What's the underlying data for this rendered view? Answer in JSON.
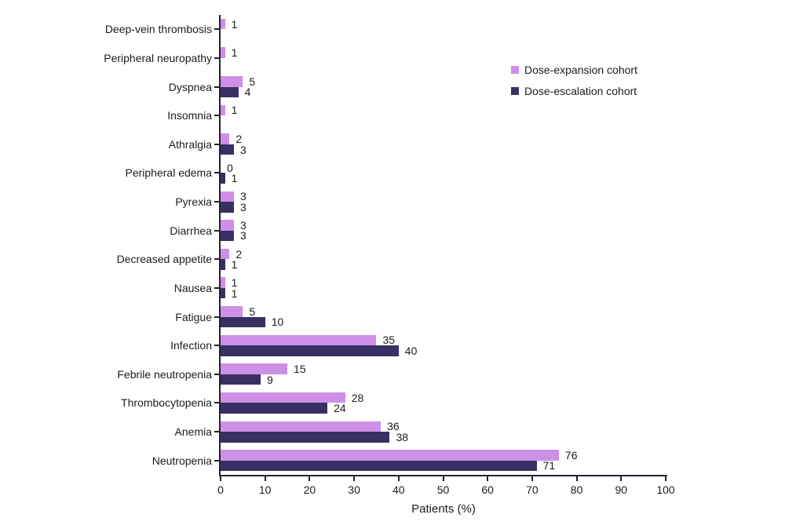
{
  "chart_data": {
    "type": "bar",
    "orientation": "horizontal",
    "title": "",
    "xlabel": "Patients (%)",
    "xlim": [
      0,
      100
    ],
    "xticks": [
      0,
      10,
      20,
      30,
      40,
      50,
      60,
      70,
      80,
      90,
      100
    ],
    "grid": false,
    "legend_position": "upper-right",
    "value_labels": true,
    "category_order": "top-to-bottom",
    "categories": [
      "Deep-vein thrombosis",
      "Peripheral neuropathy",
      "Dyspnea",
      "Insomnia",
      "Athralgia",
      "Peripheral edema",
      "Pyrexia",
      "Diarrhea",
      "Decreased appetite",
      "Nausea",
      "Fatigue",
      "Infection",
      "Febrile neutropenia",
      "Thrombocytopenia",
      "Anemia",
      "Neutropenia"
    ],
    "series": [
      {
        "name": "Dose-expansion cohort",
        "color": "#ce8fe6",
        "values": [
          1,
          1,
          5,
          1,
          2,
          0,
          3,
          3,
          2,
          1,
          5,
          35,
          15,
          28,
          36,
          76
        ]
      },
      {
        "name": "Dose-escalation cohort",
        "color": "#363063",
        "values": [
          null,
          null,
          4,
          null,
          3,
          1,
          3,
          3,
          1,
          1,
          10,
          40,
          9,
          24,
          38,
          71
        ]
      }
    ],
    "colors": {
      "axis": "#23222f",
      "text": "#1c1c1c",
      "background": "#ffffff"
    }
  }
}
